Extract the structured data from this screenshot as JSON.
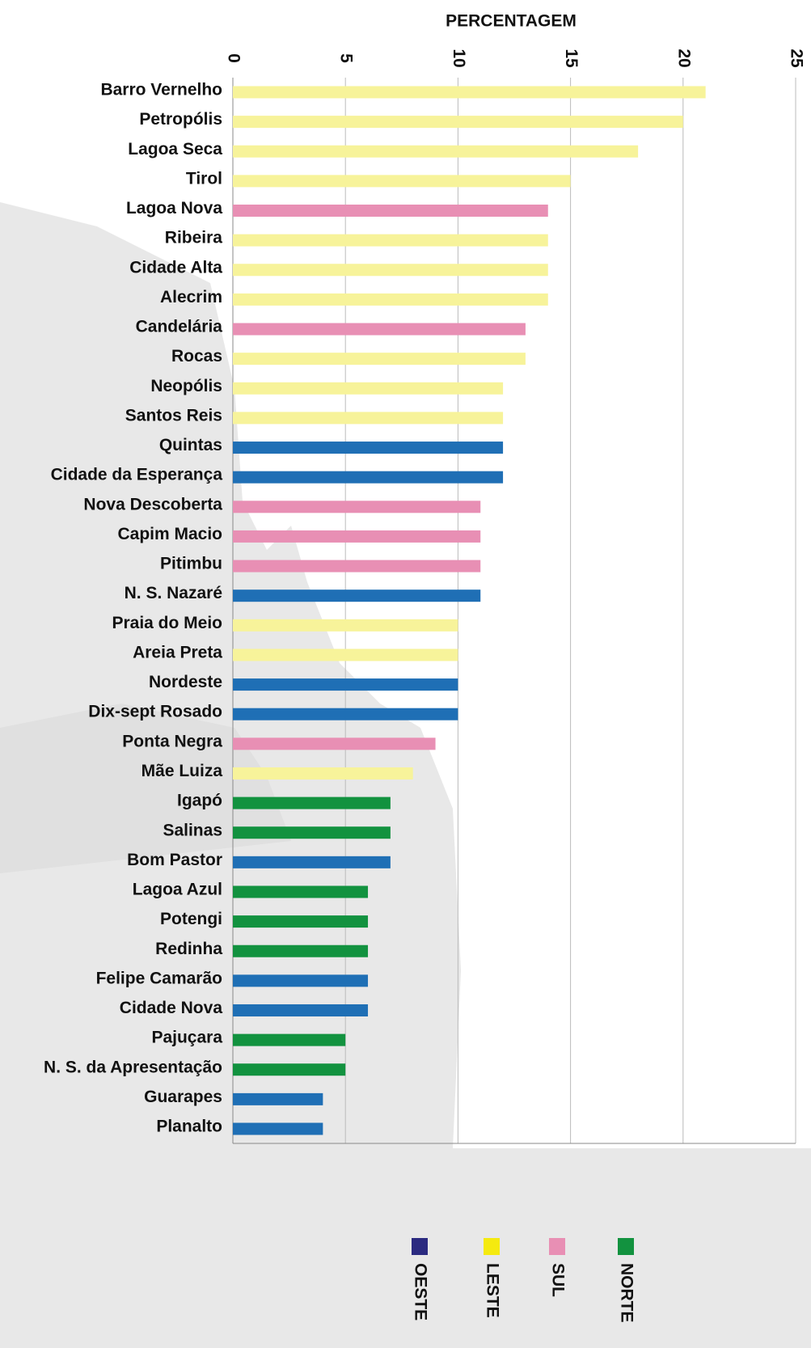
{
  "chart_data": {
    "type": "bar",
    "orientation": "horizontal",
    "title": "PERCENTAGEM",
    "categories": [
      "Barro Vernelho",
      "Petropólis",
      "Lagoa Seca",
      "Tirol",
      "Lagoa Nova",
      "Ribeira",
      "Cidade Alta",
      "Alecrim",
      "Candelária",
      "Rocas",
      "Neopólis",
      "Santos Reis",
      "Quintas",
      "Cidade da Esperança",
      "Nova Descoberta",
      "Capim Macio",
      "Pitimbu",
      "N. S. Nazaré",
      "Praia do Meio",
      "Areia Preta",
      "Nordeste",
      "Dix-sept Rosado",
      "Ponta Negra",
      "Mãe Luiza",
      "Igapó",
      "Salinas",
      "Bom Pastor",
      "Lagoa Azul",
      "Potengi",
      "Redinha",
      "Felipe Camarão",
      "Cidade Nova",
      "Pajuçara",
      "N. S. da Apresentação",
      "Guarapes",
      "Planalto"
    ],
    "values": [
      21,
      20,
      18,
      15,
      14,
      14,
      14,
      14,
      13,
      13,
      12,
      12,
      12,
      12,
      11,
      11,
      11,
      11,
      10,
      10,
      10,
      10,
      9,
      8,
      7,
      7,
      7,
      6,
      6,
      6,
      6,
      6,
      5,
      5,
      4,
      4
    ],
    "colors": [
      "#f7f39a",
      "#f7f39a",
      "#f7f39a",
      "#f7f39a",
      "#e88fb4",
      "#f7f39a",
      "#f7f39a",
      "#f7f39a",
      "#e88fb4",
      "#f7f39a",
      "#f7f39a",
      "#f7f39a",
      "#1f6fb5",
      "#1f6fb5",
      "#e88fb4",
      "#e88fb4",
      "#e88fb4",
      "#1f6fb5",
      "#f7f39a",
      "#f7f39a",
      "#1f6fb5",
      "#1f6fb5",
      "#e88fb4",
      "#f7f39a",
      "#12923f",
      "#12923f",
      "#1f6fb5",
      "#12923f",
      "#12923f",
      "#12923f",
      "#1f6fb5",
      "#1f6fb5",
      "#12923f",
      "#12923f",
      "#1f6fb5",
      "#1f6fb5"
    ],
    "xlim": [
      0,
      25
    ],
    "xticks": [
      0,
      5,
      10,
      15,
      20,
      25
    ],
    "grid": true,
    "legend": [
      {
        "name": "OESTE",
        "color": "#2b2a80"
      },
      {
        "name": "LESTE",
        "color": "#f5ea0f"
      },
      {
        "name": "SUL",
        "color": "#e88fb4"
      },
      {
        "name": "NORTE",
        "color": "#12923f"
      }
    ]
  }
}
